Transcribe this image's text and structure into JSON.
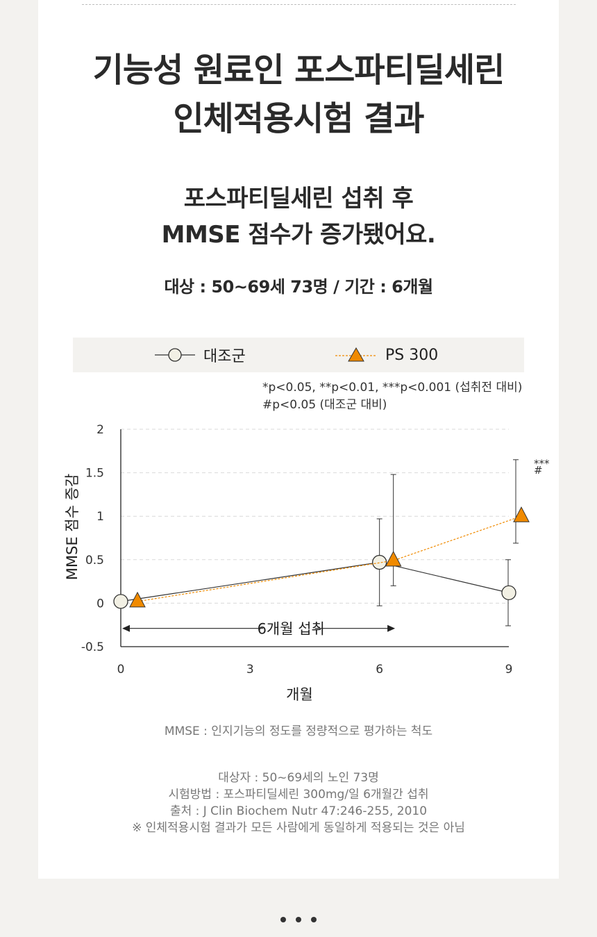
{
  "title_line1": "기능성 원료인 포스파티딜세린",
  "title_line2": "인체적용시험 결과",
  "subtitle_line1": "포스파티딜세린 섭취 후",
  "subtitle_line2": "MMSE 점수가 증가됐어요.",
  "target": "대상 : 50~69세 73명 / 기간 : 6개월",
  "legend": {
    "control": "대조군",
    "ps": "PS 300"
  },
  "significance_line1": "*p<0.05, **p<0.01, ***p<0.001 (섭취전 대비)",
  "significance_line2": "#p<0.05 (대조군 대비)",
  "chart_data": {
    "type": "line",
    "xlabel": "개월",
    "ylabel": "MMSE 점수 증감",
    "x_ticks": [
      "0",
      "3",
      "6",
      "9"
    ],
    "y_ticks": [
      "2",
      "1.5",
      "1",
      "0.5",
      "0",
      "-0.5"
    ],
    "xlim": [
      0,
      9
    ],
    "ylim": [
      -0.5,
      2
    ],
    "grid": "horizontal-dashed",
    "series": [
      {
        "name": "대조군",
        "color": "#333333",
        "marker": "circle",
        "x": [
          0,
          6,
          9
        ],
        "y": [
          0.02,
          0.47,
          0.12
        ],
        "err_low": [
          null,
          -0.03,
          -0.26
        ],
        "err_high": [
          null,
          0.97,
          0.5
        ]
      },
      {
        "name": "PS 300",
        "color": "#f08a00",
        "marker": "triangle",
        "x": [
          0,
          6,
          9
        ],
        "y": [
          0.02,
          0.49,
          1.0
        ],
        "err_low": [
          null,
          0.2,
          0.69
        ],
        "err_high": [
          null,
          1.48,
          1.65
        ]
      }
    ],
    "annotations": {
      "period_label": "6개월 섭취",
      "stars": "***",
      "hash": "#"
    }
  },
  "note_mmse": "MMSE : 인지기능의 정도를 정량적으로 평가하는 척도",
  "note_subjects": "대상자 : 50~69세의 노인 73명",
  "note_method": "시험방법 : 포스파티딜세린 300mg/일 6개월간 섭취",
  "note_source": "출처 : J Clin Biochem Nutr 47:246-255, 2010",
  "note_disclaimer": "※ 인체적용시험 결과가 모든 사람에게 동일하게 적용되는 것은 아님"
}
